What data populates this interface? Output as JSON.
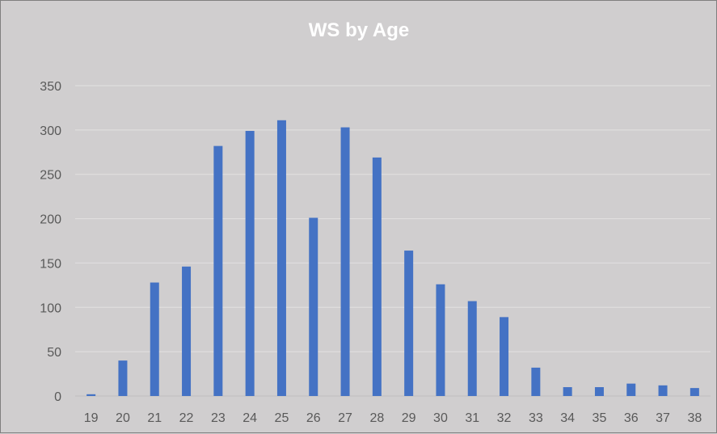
{
  "chart_data": {
    "type": "bar",
    "title": "WS by Age",
    "xlabel": "",
    "ylabel": "",
    "categories": [
      "19",
      "20",
      "21",
      "22",
      "23",
      "24",
      "25",
      "26",
      "27",
      "28",
      "29",
      "30",
      "31",
      "32",
      "33",
      "34",
      "35",
      "36",
      "37",
      "38"
    ],
    "values": [
      2,
      40,
      128,
      146,
      282,
      299,
      311,
      201,
      303,
      269,
      164,
      126,
      107,
      89,
      32,
      10,
      10,
      14,
      12,
      9
    ],
    "ylim": [
      0,
      350
    ],
    "yticks": [
      0,
      50,
      100,
      150,
      200,
      250,
      300,
      350
    ],
    "grid": true,
    "legend": "none",
    "colors": {
      "bar": "#4472c4",
      "background": "#d0cecf",
      "title": "#ffffff",
      "tick_label": "#595959",
      "gridline": "#e2e1e1"
    }
  }
}
